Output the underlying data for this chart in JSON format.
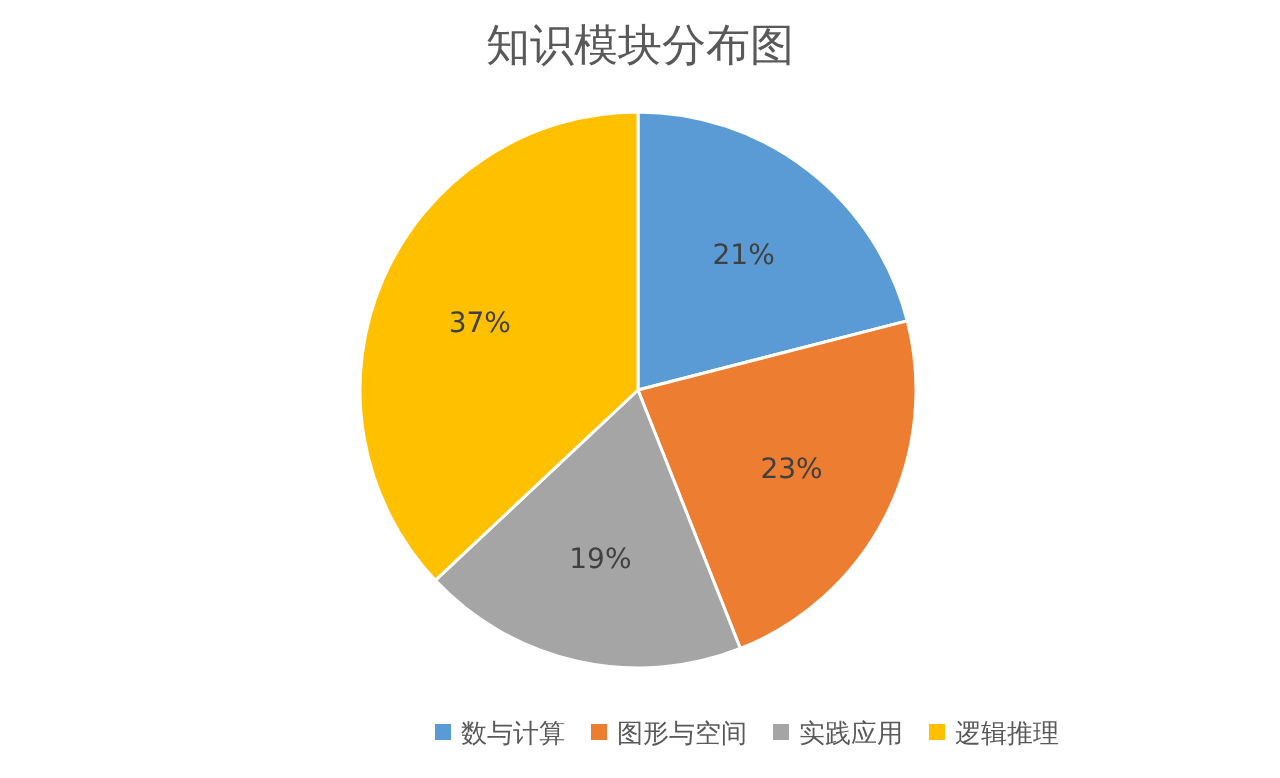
{
  "chart_data": {
    "type": "pie",
    "title": "知识模块分布图",
    "categories": [
      "数与计算",
      "图形与空间",
      "实践应用",
      "逻辑推理"
    ],
    "values": [
      21,
      23,
      19,
      37
    ],
    "colors": [
      "#5b9bd5",
      "#ed7d31",
      "#a5a5a5",
      "#ffc000"
    ],
    "value_labels": [
      "21%",
      "23%",
      "19%",
      "37%"
    ],
    "legend": "bottom"
  }
}
